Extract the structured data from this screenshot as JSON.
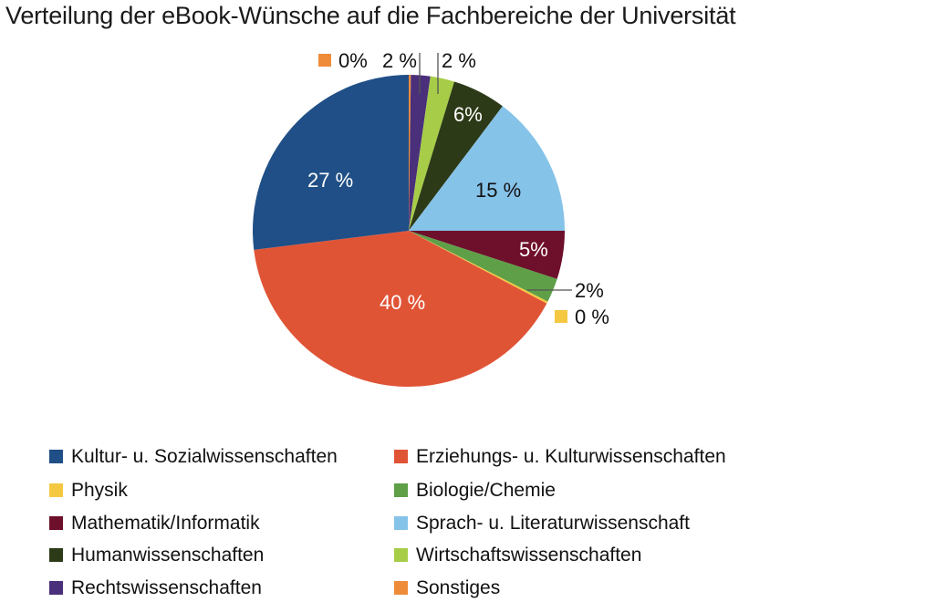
{
  "title": "Verteilung der eBook-Wünsche auf die Fachbereiche der Universität",
  "chart_data": {
    "type": "pie",
    "title": "Verteilung der eBook-Wünsche auf die Fachbereiche der Universität",
    "start_angle_deg": 0,
    "direction": "clockwise",
    "legend_position": "bottom",
    "slices": [
      {
        "name": "Sonstiges",
        "value": 0,
        "label": "0%",
        "color": "#EE8C3A",
        "start": 0,
        "end": 0.8
      },
      {
        "name": "Rechtswissenschaften",
        "value": 2,
        "label": "2 %",
        "color": "#4A2F7A",
        "start": 0.8,
        "end": 8
      },
      {
        "name": "Wirtschaftswissenschaften",
        "value": 2,
        "label": "2 %",
        "color": "#A7CD48",
        "start": 8,
        "end": 17
      },
      {
        "name": "Humanwissenschaften",
        "value": 6,
        "label": "6%",
        "color": "#2D3A18",
        "start": 17,
        "end": 37
      },
      {
        "name": "Sprach- u. Literaturwissenschaft",
        "value": 15,
        "label": "15 %",
        "color": "#86C3E9",
        "start": 37,
        "end": 90
      },
      {
        "name": "Mathematik/Informatik",
        "value": 5,
        "label": "5%",
        "color": "#6E0F2B",
        "start": 90,
        "end": 108
      },
      {
        "name": "Biologie/Chemie",
        "value": 2,
        "label": "2%",
        "color": "#5E9F48",
        "start": 108,
        "end": 117
      },
      {
        "name": "Physik",
        "value": 0,
        "label": "0 %",
        "color": "#F5C842",
        "start": 117,
        "end": 117.8
      },
      {
        "name": "Erziehungs- u. Kulturwissenschaften",
        "value": 40,
        "label": "40 %",
        "color": "#E05436",
        "start": 117.8,
        "end": 263
      },
      {
        "name": "Kultur- u. Sozialwissenschaften",
        "value": 27,
        "label": "27 %",
        "color": "#1F4F86",
        "start": 263,
        "end": 360
      }
    ]
  },
  "labels": {
    "sonstiges": "0%",
    "rechts": "2 %",
    "wirtschaft": "2 %",
    "human": "6%",
    "sprach": "15 %",
    "mathe": "5%",
    "bio": "2%",
    "physik": "0 %",
    "erziehung": "40 %",
    "kultur": "27 %"
  },
  "legend": [
    {
      "label": "Kultur- u. Sozialwissenschaften",
      "color": "#1F4F86"
    },
    {
      "label": "Erziehungs- u. Kulturwissenschaften",
      "color": "#E05436"
    },
    {
      "label": "Physik",
      "color": "#F5C842"
    },
    {
      "label": "Biologie/Chemie",
      "color": "#5E9F48"
    },
    {
      "label": "Mathematik/Informatik",
      "color": "#6E0F2B"
    },
    {
      "label": "Sprach- u. Literaturwissenschaft",
      "color": "#86C3E9"
    },
    {
      "label": "Humanwissenschaften",
      "color": "#2D3A18"
    },
    {
      "label": "Wirtschaftswissenschaften",
      "color": "#A7CD48"
    },
    {
      "label": "Rechtswissenschaften",
      "color": "#4A2F7A"
    },
    {
      "label": "Sonstiges",
      "color": "#EE8C3A"
    }
  ]
}
